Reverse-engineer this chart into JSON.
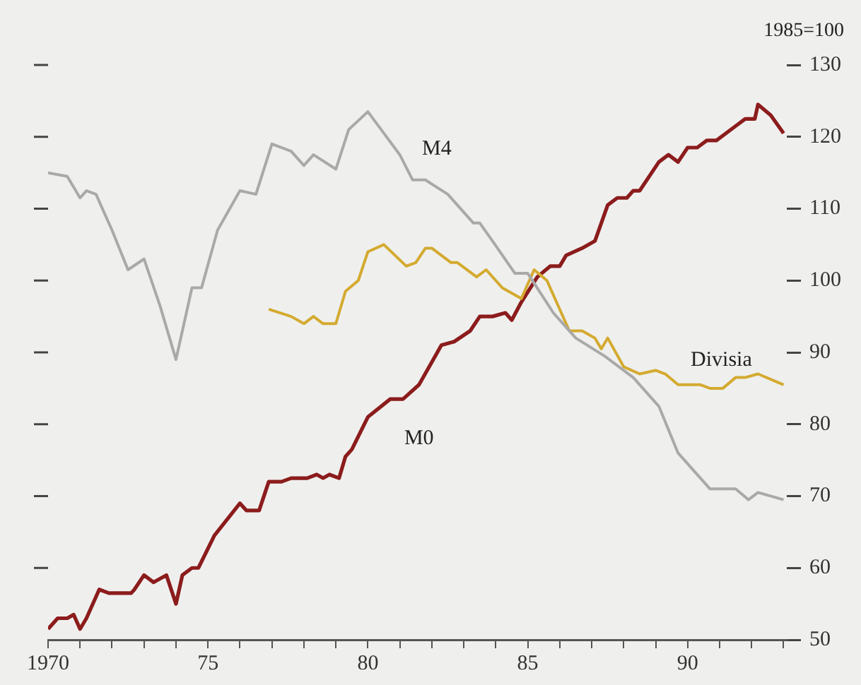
{
  "chart_data": {
    "type": "line",
    "annotations": [
      "1985=100"
    ],
    "xlim": [
      1970,
      1993.1
    ],
    "xticks": [
      {
        "value": 1970,
        "label": "1970"
      },
      {
        "value": 1971,
        "label": null
      },
      {
        "value": 1972,
        "label": null
      },
      {
        "value": 1973,
        "label": null
      },
      {
        "value": 1974,
        "label": null
      },
      {
        "value": 1975,
        "label": "75"
      },
      {
        "value": 1976,
        "label": null
      },
      {
        "value": 1977,
        "label": null
      },
      {
        "value": 1978,
        "label": null
      },
      {
        "value": 1979,
        "label": null
      },
      {
        "value": 1980,
        "label": "80"
      },
      {
        "value": 1981,
        "label": null
      },
      {
        "value": 1982,
        "label": null
      },
      {
        "value": 1983,
        "label": null
      },
      {
        "value": 1984,
        "label": null
      },
      {
        "value": 1985,
        "label": "85"
      },
      {
        "value": 1986,
        "label": null
      },
      {
        "value": 1987,
        "label": null
      },
      {
        "value": 1988,
        "label": null
      },
      {
        "value": 1989,
        "label": null
      },
      {
        "value": 1990,
        "label": "90"
      },
      {
        "value": 1991,
        "label": null
      },
      {
        "value": 1992,
        "label": null
      },
      {
        "value": 1993,
        "label": null
      }
    ],
    "ylim": [
      50,
      130
    ],
    "yticks": [
      50,
      60,
      70,
      80,
      90,
      100,
      110,
      120,
      130
    ],
    "grid": false,
    "legend": false,
    "marker": "none",
    "line_style": "solid",
    "series": [
      {
        "name": "M4",
        "color": "#a9a9a9",
        "x": [
          1970.0,
          1970.6,
          1971.0,
          1971.2,
          1971.5,
          1972.0,
          1972.5,
          1973.0,
          1973.5,
          1974.0,
          1974.5,
          1974.8,
          1975.3,
          1976.0,
          1976.5,
          1977.0,
          1977.6,
          1978.0,
          1978.3,
          1979.0,
          1979.4,
          1980.0,
          1980.5,
          1981.0,
          1981.4,
          1981.8,
          1982.5,
          1983.3,
          1983.5,
          1983.9,
          1984.6,
          1985.0,
          1985.8,
          1986.5,
          1987.4,
          1988.3,
          1989.1,
          1989.7,
          1990.4,
          1990.7,
          1991.5,
          1991.9,
          1992.2,
          1993.0
        ],
        "values": [
          115,
          114.5,
          111.5,
          112.5,
          112,
          107,
          101.5,
          103,
          96.5,
          89,
          99,
          99,
          107,
          112.5,
          112,
          119,
          118,
          116,
          117.5,
          115.5,
          121,
          123.5,
          120.5,
          117.5,
          114,
          114,
          112,
          108,
          108,
          105.5,
          101,
          101,
          95.5,
          92,
          89.5,
          86.5,
          82.5,
          76,
          72.5,
          71,
          71,
          69.5,
          70.5,
          69.5
        ]
      },
      {
        "name": "Divisia",
        "color": "#d4aa30",
        "x": [
          1976.9,
          1977.6,
          1978.0,
          1978.3,
          1978.6,
          1979.0,
          1979.3,
          1979.7,
          1980.0,
          1980.5,
          1981.2,
          1981.5,
          1981.8,
          1982.0,
          1982.6,
          1982.8,
          1983.4,
          1983.7,
          1984.2,
          1984.8,
          1985.2,
          1985.6,
          1986.0,
          1986.3,
          1986.7,
          1987.1,
          1987.3,
          1987.5,
          1988.0,
          1988.5,
          1989.0,
          1989.3,
          1989.7,
          1990.1,
          1990.4,
          1990.7,
          1991.1,
          1991.5,
          1991.8,
          1992.2,
          1993.0
        ],
        "values": [
          96,
          95,
          94,
          95,
          94,
          94,
          98.5,
          100,
          104,
          105,
          102,
          102.5,
          104.5,
          104.5,
          102.5,
          102.5,
          100.5,
          101.5,
          99,
          97.5,
          101.5,
          100,
          96,
          93,
          93,
          92,
          90.5,
          92,
          88,
          87,
          87.5,
          87,
          85.5,
          85.5,
          85.5,
          85,
          85,
          86.5,
          86.5,
          87,
          85.5
        ]
      },
      {
        "name": "M0",
        "color": "#8c1c1c",
        "x": [
          1970.0,
          1970.3,
          1970.6,
          1970.8,
          1971.0,
          1971.2,
          1971.6,
          1971.9,
          1972.6,
          1972.7,
          1973.0,
          1973.3,
          1973.7,
          1974.0,
          1974.2,
          1974.5,
          1974.7,
          1975.2,
          1976.0,
          1976.2,
          1976.6,
          1976.9,
          1977.3,
          1977.6,
          1978.1,
          1978.4,
          1978.6,
          1978.8,
          1979.1,
          1979.3,
          1979.5,
          1980.0,
          1980.7,
          1981.1,
          1981.6,
          1982.3,
          1982.7,
          1983.2,
          1983.5,
          1983.9,
          1984.3,
          1984.5,
          1984.8,
          1985.3,
          1985.7,
          1986.0,
          1986.2,
          1986.7,
          1987.1,
          1987.5,
          1987.8,
          1988.1,
          1988.3,
          1988.5,
          1989.1,
          1989.4,
          1989.7,
          1990.0,
          1990.3,
          1990.6,
          1990.9,
          1991.5,
          1991.8,
          1992.1,
          1992.2,
          1992.6,
          1993.0
        ],
        "values": [
          51.5,
          53,
          53,
          53.5,
          51.5,
          53,
          57,
          56.5,
          56.5,
          57,
          59,
          58,
          59,
          55,
          59,
          60,
          60,
          64.5,
          69,
          68,
          68,
          72,
          72,
          72.5,
          72.5,
          73,
          72.5,
          73,
          72.5,
          75.5,
          76.5,
          81,
          83.5,
          83.5,
          85.5,
          91,
          91.5,
          93,
          95,
          95,
          95.5,
          94.5,
          97,
          100.5,
          102,
          102,
          103.5,
          104.5,
          105.5,
          110.5,
          111.5,
          111.5,
          112.5,
          112.5,
          116.5,
          117.5,
          116.5,
          118.5,
          118.5,
          119.5,
          119.5,
          121.5,
          122.5,
          122.5,
          124.5,
          123,
          120.5
        ]
      }
    ]
  }
}
